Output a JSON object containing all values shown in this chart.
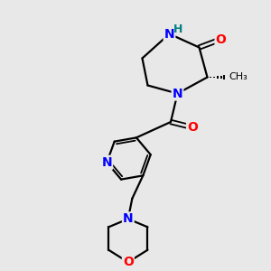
{
  "bg_color": "#e8e8e8",
  "atom_colors": {
    "N": "#0000ff",
    "O": "#ff0000",
    "C": "#000000",
    "H": "#008080"
  },
  "bond_color": "#000000",
  "bond_width": 1.6,
  "font_size_atom": 10,
  "title": ""
}
